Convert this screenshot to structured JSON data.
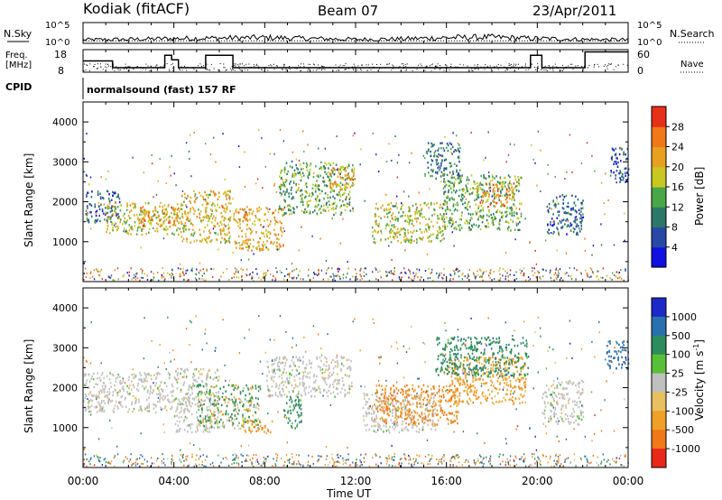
{
  "header": {
    "station": "Kodiak (fitACF)",
    "beam": "Beam 07",
    "date": "23/Apr/2011"
  },
  "top_panels": {
    "nsky_label": "N.Sky",
    "nsky_tick_top": "10^5",
    "nsky_tick_bottom": "10^0",
    "nsearch_label": "N.Search",
    "nsearch_tick_top": "10^5",
    "nsearch_tick_bottom": "10^0",
    "freq_label_line1": "Freq.",
    "freq_label_line2": "[MHz]",
    "freq_tick_top": "18",
    "freq_tick_bottom": "8",
    "nave_label": "Nave",
    "nave_tick_top": "60",
    "nave_tick_bottom": "0",
    "cpid_label": "CPID",
    "cpid_value": "normalsound (fast) 157 RF"
  },
  "axes": {
    "ylabel": "Slant Range [km]",
    "xlabel": "Time UT",
    "yticks": [
      "1000",
      "2000",
      "3000",
      "4000"
    ],
    "xticks": [
      "00:00",
      "04:00",
      "08:00",
      "12:00",
      "16:00",
      "20:00",
      "00:00"
    ]
  },
  "colorbars": {
    "power": {
      "label": "Power [dB]",
      "ticks": [
        "4",
        "8",
        "12",
        "16",
        "20",
        "24",
        "28"
      ],
      "colors": [
        "#1010e0",
        "#2848a8",
        "#2c7868",
        "#48a848",
        "#c8c820",
        "#e8a020",
        "#f07818",
        "#e83018"
      ]
    },
    "velocity": {
      "label": "Velocity [m s",
      "label_sup": "-1",
      "label_end": "]",
      "ticks": [
        "1000",
        "500",
        "100",
        "25",
        "-25",
        "-100",
        "-500",
        "-1000"
      ],
      "colors": [
        "#1c28c8",
        "#2870b0",
        "#2c8c5c",
        "#58c038",
        "#c0c0c0",
        "#e8c060",
        "#f0a028",
        "#f07818",
        "#e82818"
      ]
    }
  },
  "chart_data": [
    {
      "type": "line",
      "name_in_figure": "N.Sky / N.Search",
      "xlim": [
        0,
        24
      ],
      "ylim_log10": [
        0,
        5
      ],
      "x": [
        0,
        2,
        4,
        6,
        8,
        10,
        12,
        14,
        16,
        18,
        20,
        22,
        24
      ],
      "values": [
        0.8,
        0.9,
        1.1,
        1.2,
        1.3,
        1.1,
        0.9,
        1.0,
        1.3,
        1.4,
        1.1,
        0.9,
        0.8
      ]
    },
    {
      "type": "line",
      "name_in_figure": "Freq. [MHz] (step line) and Nave (dots)",
      "xlim": [
        0,
        24
      ],
      "ylim": [
        8,
        18
      ],
      "freq_x": [
        0,
        1.3,
        1.3,
        3.6,
        3.6,
        3.9,
        3.9,
        4.2,
        4.2,
        5.4,
        5.4,
        6.6,
        6.6,
        19.7,
        19.7,
        20.2,
        20.2,
        22.1,
        22.1,
        24
      ],
      "freq_y": [
        13,
        13,
        10,
        10,
        15.5,
        15.5,
        13.5,
        13.5,
        10,
        10,
        15.5,
        15.5,
        10,
        10,
        15.5,
        15.5,
        10,
        10,
        17,
        17
      ]
    },
    {
      "type": "heatmap",
      "name_in_figure": "Power [dB]",
      "xlim": [
        0,
        24
      ],
      "ylim": [
        0,
        4500
      ],
      "zlim": [
        0,
        32
      ],
      "regions": [
        {
          "x": [
            0.1,
            1.6
          ],
          "y": [
            1500,
            2300
          ],
          "z": 8
        },
        {
          "x": [
            1.0,
            4.5
          ],
          "y": [
            1200,
            2000
          ],
          "z": 18
        },
        {
          "x": [
            2.5,
            4.2
          ],
          "y": [
            1400,
            1900
          ],
          "z": 24
        },
        {
          "x": [
            4.3,
            6.5
          ],
          "y": [
            1000,
            2300
          ],
          "z": 20
        },
        {
          "x": [
            6.6,
            8.8
          ],
          "y": [
            800,
            1900
          ],
          "z": 22
        },
        {
          "x": [
            8.6,
            11.9
          ],
          "y": [
            1700,
            3000
          ],
          "z": 14
        },
        {
          "x": [
            10.8,
            12.0
          ],
          "y": [
            2300,
            2900
          ],
          "z": 22
        },
        {
          "x": [
            12.7,
            15.9
          ],
          "y": [
            1000,
            2000
          ],
          "z": 18
        },
        {
          "x": [
            15.0,
            16.6
          ],
          "y": [
            2600,
            3500
          ],
          "z": 10
        },
        {
          "x": [
            15.8,
            19.3
          ],
          "y": [
            1300,
            2700
          ],
          "z": 14
        },
        {
          "x": [
            17.3,
            19.0
          ],
          "y": [
            1900,
            2500
          ],
          "z": 24
        },
        {
          "x": [
            20.4,
            22.0
          ],
          "y": [
            1200,
            2200
          ],
          "z": 8
        },
        {
          "x": [
            23.2,
            24.0
          ],
          "y": [
            2500,
            3400
          ],
          "z": 6
        }
      ]
    },
    {
      "type": "heatmap",
      "name_in_figure": "Velocity [m s-1]",
      "xlim": [
        0,
        24
      ],
      "ylim": [
        0,
        4500
      ],
      "zlim": [
        -1000,
        1000
      ],
      "regions": [
        {
          "x": [
            0.0,
            4.0
          ],
          "y": [
            1400,
            2400
          ],
          "z": 0
        },
        {
          "x": [
            4.0,
            6.0
          ],
          "y": [
            900,
            2500
          ],
          "z": 0
        },
        {
          "x": [
            5.0,
            7.8
          ],
          "y": [
            1000,
            2100
          ],
          "z": 80
        },
        {
          "x": [
            7.0,
            8.3
          ],
          "y": [
            900,
            1200
          ],
          "z": -400
        },
        {
          "x": [
            8.0,
            11.8
          ],
          "y": [
            1800,
            2800
          ],
          "z": 0
        },
        {
          "x": [
            8.8,
            9.6
          ],
          "y": [
            1000,
            1800
          ],
          "z": 300
        },
        {
          "x": [
            12.3,
            15.5
          ],
          "y": [
            900,
            1900
          ],
          "z": 0
        },
        {
          "x": [
            12.8,
            16.5
          ],
          "y": [
            1100,
            2100
          ],
          "z": -500
        },
        {
          "x": [
            16.0,
            19.5
          ],
          "y": [
            1600,
            2800
          ],
          "z": -300
        },
        {
          "x": [
            15.5,
            19.6
          ],
          "y": [
            2300,
            3300
          ],
          "z": 300
        },
        {
          "x": [
            20.2,
            22.0
          ],
          "y": [
            1100,
            2200
          ],
          "z": 0
        },
        {
          "x": [
            23.0,
            24.0
          ],
          "y": [
            2500,
            3200
          ],
          "z": 800
        }
      ]
    }
  ]
}
